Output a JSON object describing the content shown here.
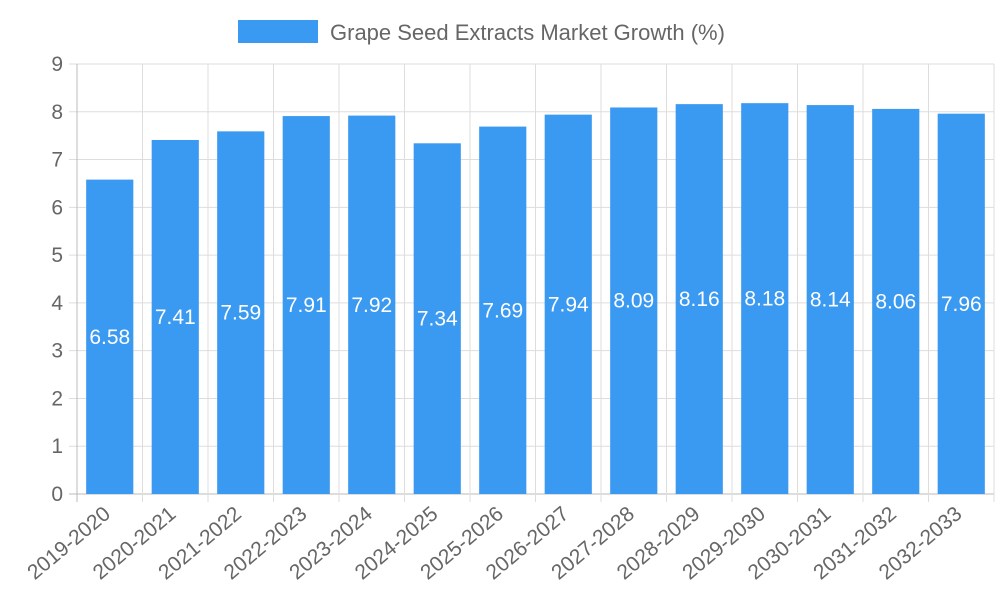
{
  "chart_data": {
    "type": "bar",
    "title": "",
    "xlabel": "",
    "ylabel": "",
    "legend_position": "top-center",
    "ylim": [
      0,
      9
    ],
    "yticks": [
      "0",
      "1",
      "2",
      "3",
      "4",
      "5",
      "6",
      "7",
      "8",
      "9"
    ],
    "categories": [
      "2019-2020",
      "2020-2021",
      "2021-2022",
      "2022-2023",
      "2023-2024",
      "2024-2025",
      "2025-2026",
      "2026-2027",
      "2027-2028",
      "2028-2029",
      "2029-2030",
      "2030-2031",
      "2031-2032",
      "2032-2033"
    ],
    "series": [
      {
        "name": "Grape Seed Extracts Market Growth (%)",
        "color": "#3a99f0",
        "values": [
          6.58,
          7.41,
          7.59,
          7.91,
          7.92,
          7.34,
          7.69,
          7.94,
          8.09,
          8.16,
          8.18,
          8.14,
          8.06,
          7.96
        ],
        "value_labels": [
          "6.58",
          "7.41",
          "7.59",
          "7.91",
          "7.92",
          "7.34",
          "7.69",
          "7.94",
          "8.09",
          "8.16",
          "8.18",
          "8.14",
          "8.06",
          "7.96"
        ]
      }
    ],
    "grid": true,
    "gridColor": "#dddddd",
    "axisColor": "#bbbbbb"
  }
}
